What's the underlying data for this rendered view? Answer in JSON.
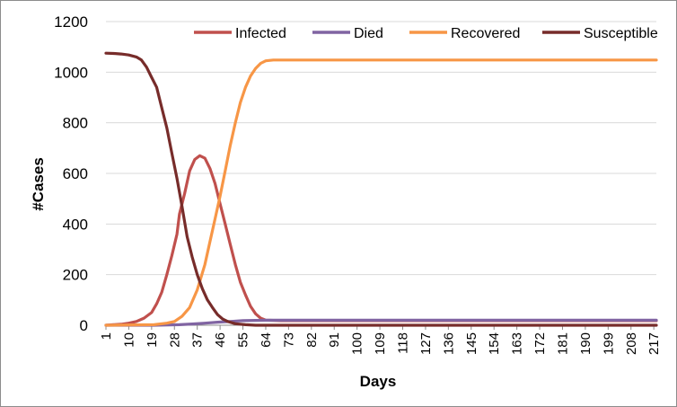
{
  "chart_data": {
    "type": "line",
    "title": "",
    "xlabel": "Days",
    "ylabel": "#Cases",
    "ylim": [
      0,
      1200
    ],
    "yticks": [
      0,
      200,
      400,
      600,
      800,
      1000,
      1200
    ],
    "xticks": [
      1,
      10,
      19,
      28,
      37,
      46,
      55,
      64,
      73,
      82,
      91,
      100,
      109,
      118,
      127,
      136,
      145,
      154,
      163,
      172,
      181,
      190,
      199,
      208,
      217
    ],
    "xlim": [
      1,
      218
    ],
    "grid": true,
    "legend_position": "top-right",
    "series": [
      {
        "name": "Infected",
        "color": "#c0504d",
        "points": [
          [
            1,
            0
          ],
          [
            4,
            2
          ],
          [
            7,
            4
          ],
          [
            10,
            8
          ],
          [
            13,
            15
          ],
          [
            16,
            28
          ],
          [
            19,
            50
          ],
          [
            21,
            85
          ],
          [
            23,
            130
          ],
          [
            25,
            200
          ],
          [
            27,
            275
          ],
          [
            29,
            360
          ],
          [
            30,
            440
          ],
          [
            32,
            520
          ],
          [
            34,
            610
          ],
          [
            36,
            655
          ],
          [
            38,
            670
          ],
          [
            40,
            660
          ],
          [
            42,
            620
          ],
          [
            44,
            560
          ],
          [
            46,
            480
          ],
          [
            48,
            400
          ],
          [
            50,
            320
          ],
          [
            52,
            240
          ],
          [
            54,
            170
          ],
          [
            56,
            120
          ],
          [
            58,
            75
          ],
          [
            60,
            45
          ],
          [
            62,
            28
          ],
          [
            64,
            20
          ],
          [
            70,
            18
          ],
          [
            218,
            18
          ]
        ]
      },
      {
        "name": "Died",
        "color": "#8064a2",
        "points": [
          [
            1,
            0
          ],
          [
            20,
            0
          ],
          [
            30,
            2
          ],
          [
            35,
            5
          ],
          [
            40,
            8
          ],
          [
            45,
            12
          ],
          [
            50,
            15
          ],
          [
            55,
            18
          ],
          [
            60,
            19
          ],
          [
            65,
            20
          ],
          [
            218,
            20
          ]
        ]
      },
      {
        "name": "Recovered",
        "color": "#f79646",
        "points": [
          [
            1,
            0
          ],
          [
            20,
            2
          ],
          [
            25,
            8
          ],
          [
            28,
            15
          ],
          [
            31,
            35
          ],
          [
            34,
            70
          ],
          [
            37,
            140
          ],
          [
            40,
            240
          ],
          [
            42,
            330
          ],
          [
            44,
            420
          ],
          [
            46,
            510
          ],
          [
            48,
            610
          ],
          [
            50,
            710
          ],
          [
            52,
            800
          ],
          [
            54,
            880
          ],
          [
            56,
            940
          ],
          [
            58,
            985
          ],
          [
            60,
            1015
          ],
          [
            62,
            1035
          ],
          [
            64,
            1045
          ],
          [
            67,
            1048
          ],
          [
            218,
            1048
          ]
        ]
      },
      {
        "name": "Susceptible",
        "color": "#772c2a",
        "points": [
          [
            1,
            1075
          ],
          [
            4,
            1074
          ],
          [
            7,
            1072
          ],
          [
            10,
            1068
          ],
          [
            13,
            1060
          ],
          [
            15,
            1048
          ],
          [
            17,
            1020
          ],
          [
            19,
            980
          ],
          [
            21,
            940
          ],
          [
            23,
            860
          ],
          [
            25,
            780
          ],
          [
            27,
            680
          ],
          [
            29,
            580
          ],
          [
            31,
            470
          ],
          [
            33,
            350
          ],
          [
            35,
            270
          ],
          [
            37,
            200
          ],
          [
            39,
            145
          ],
          [
            41,
            100
          ],
          [
            43,
            70
          ],
          [
            45,
            42
          ],
          [
            47,
            25
          ],
          [
            49,
            15
          ],
          [
            52,
            6
          ],
          [
            56,
            2
          ],
          [
            60,
            0
          ],
          [
            218,
            0
          ]
        ]
      }
    ]
  }
}
